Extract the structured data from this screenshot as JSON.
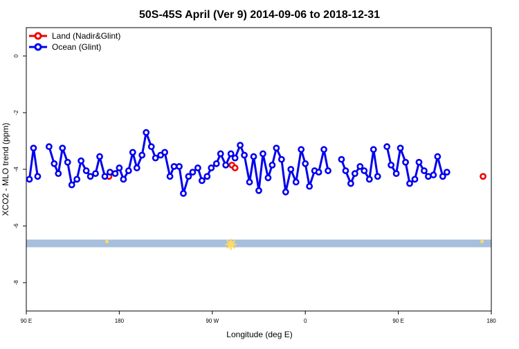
{
  "chart_data": {
    "type": "line",
    "title": "50S-45S April (Ver 9)   2014-09-06 to 2018-12-31",
    "xlabel": "Longitude (deg E)",
    "ylabel": "XCO2 - MLO trend (ppm)",
    "xlim": [
      90,
      540
    ],
    "ylim": [
      -9,
      1
    ],
    "x_ticks": [
      {
        "value": 90,
        "label": "90 E"
      },
      {
        "value": 180,
        "label": "180"
      },
      {
        "value": 270,
        "label": "90 W"
      },
      {
        "value": 360,
        "label": "0"
      },
      {
        "value": 450,
        "label": "90 E"
      },
      {
        "value": 540,
        "label": "180"
      }
    ],
    "y_ticks": [
      {
        "value": 0,
        "label": "0"
      },
      {
        "value": -2,
        "label": "-2"
      },
      {
        "value": -4,
        "label": "-4"
      },
      {
        "value": -6,
        "label": "-6"
      },
      {
        "value": -8,
        "label": "-8"
      }
    ],
    "legend": {
      "placement": "top-left"
    },
    "colors": {
      "land": "#ee0000",
      "ocean": "#0000ee",
      "band": "#a7bfdc",
      "sun": "#ffd966"
    },
    "band_y": [
      -6.75,
      -6.48
    ],
    "glint_markers": [
      {
        "x": 168,
        "y": -6.55
      },
      {
        "x": 288,
        "y": -6.65
      },
      {
        "x": 531,
        "y": -6.55
      }
    ],
    "series": [
      {
        "name": "Land (Nadir&Glint)",
        "color": "#ee0000",
        "segments": [
          [
            [
              170,
              -4.25
            ]
          ],
          [
            [
              289,
              -3.85
            ],
            [
              292,
              -3.95
            ]
          ],
          [
            [
              532,
              -4.25
            ]
          ]
        ]
      },
      {
        "name": "Ocean (Glint)",
        "color": "#0000ee",
        "segments": [
          [
            [
              93,
              -4.35
            ],
            [
              97,
              -3.25
            ],
            [
              101,
              -4.25
            ]
          ],
          [
            [
              112,
              -3.2
            ],
            [
              117,
              -3.8
            ],
            [
              121,
              -4.15
            ],
            [
              125,
              -3.25
            ],
            [
              130,
              -3.75
            ],
            [
              134,
              -4.55
            ],
            [
              139,
              -4.35
            ],
            [
              143,
              -3.7
            ],
            [
              148,
              -4.05
            ],
            [
              152,
              -4.25
            ],
            [
              157,
              -4.15
            ],
            [
              161,
              -3.55
            ],
            [
              166,
              -4.25
            ],
            [
              171,
              -4.1
            ],
            [
              176,
              -4.15
            ],
            [
              180,
              -3.95
            ],
            [
              184,
              -4.35
            ],
            [
              189,
              -4.05
            ],
            [
              193,
              -3.4
            ],
            [
              197,
              -3.95
            ],
            [
              202,
              -3.5
            ],
            [
              206,
              -2.7
            ],
            [
              211,
              -3.2
            ],
            [
              215,
              -3.6
            ],
            [
              220,
              -3.5
            ],
            [
              224,
              -3.4
            ],
            [
              229,
              -4.25
            ],
            [
              233,
              -3.9
            ],
            [
              238,
              -3.9
            ],
            [
              242,
              -4.85
            ],
            [
              247,
              -4.25
            ],
            [
              251,
              -4.1
            ],
            [
              256,
              -3.95
            ],
            [
              260,
              -4.4
            ],
            [
              265,
              -4.25
            ],
            [
              269,
              -3.95
            ],
            [
              274,
              -3.8
            ],
            [
              278,
              -3.45
            ],
            [
              283,
              -3.85
            ],
            [
              288,
              -3.45
            ],
            [
              292,
              -3.6
            ],
            [
              297,
              -3.15
            ],
            [
              301,
              -3.5
            ],
            [
              306,
              -4.45
            ],
            [
              310,
              -3.55
            ],
            [
              315,
              -4.75
            ],
            [
              319,
              -3.45
            ],
            [
              324,
              -4.3
            ],
            [
              328,
              -3.85
            ],
            [
              332,
              -3.25
            ],
            [
              337,
              -3.65
            ],
            [
              341,
              -4.8
            ],
            [
              346,
              -4.0
            ],
            [
              351,
              -4.45
            ],
            [
              356,
              -3.3
            ],
            [
              360,
              -3.8
            ],
            [
              364,
              -4.6
            ],
            [
              369,
              -4.05
            ],
            [
              373,
              -4.1
            ],
            [
              378,
              -3.3
            ],
            [
              382,
              -4.05
            ]
          ]
        ]
      },
      {
        "name": "Ocean (Glint)",
        "color": "#0000ee",
        "segments": [
          [
            [
              395,
              -3.65
            ],
            [
              399,
              -4.05
            ],
            [
              404,
              -4.5
            ],
            [
              408,
              -4.15
            ],
            [
              413,
              -3.9
            ],
            [
              417,
              -4.05
            ],
            [
              422,
              -4.35
            ],
            [
              426,
              -3.3
            ],
            [
              430,
              -4.25
            ]
          ],
          [
            [
              439,
              -3.2
            ],
            [
              443,
              -3.85
            ],
            [
              448,
              -4.15
            ],
            [
              452,
              -3.25
            ],
            [
              457,
              -3.75
            ],
            [
              461,
              -4.5
            ],
            [
              466,
              -4.35
            ],
            [
              470,
              -3.75
            ],
            [
              475,
              -4.05
            ],
            [
              479,
              -4.25
            ],
            [
              484,
              -4.2
            ],
            [
              488,
              -3.55
            ],
            [
              493,
              -4.25
            ],
            [
              497,
              -4.1
            ]
          ]
        ]
      }
    ]
  }
}
